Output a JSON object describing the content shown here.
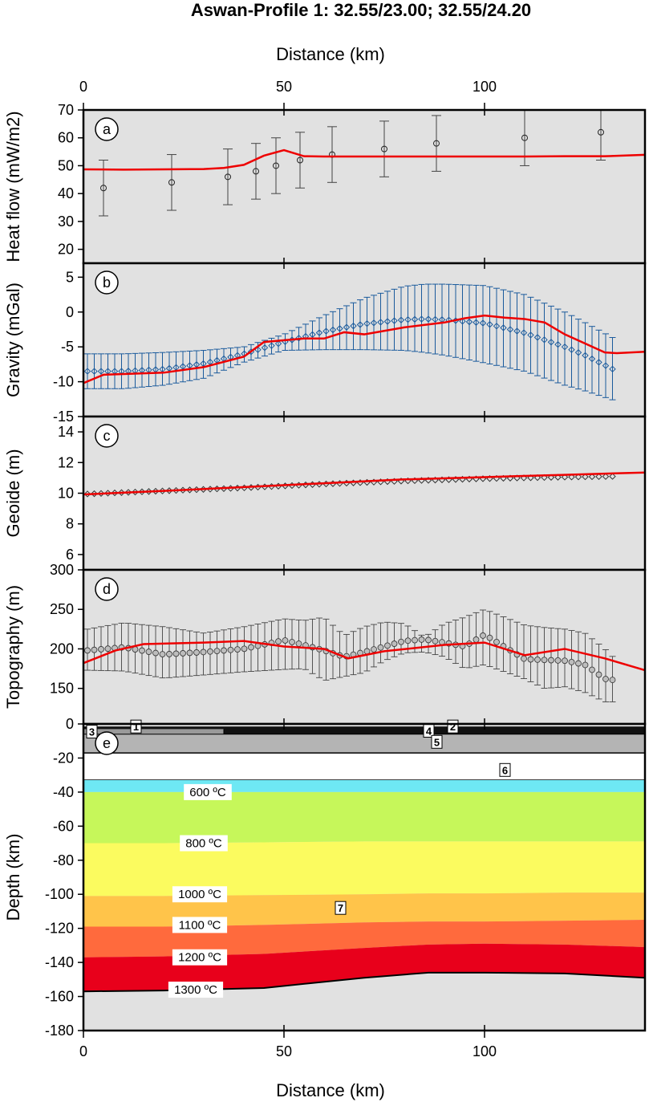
{
  "figure": {
    "title": "Aswan-Profile 1: 32.55/23.00; 32.55/24.20",
    "x_axis_label": "Distance (km)",
    "x_ticks": [
      0,
      50,
      100
    ]
  },
  "chart_data": [
    {
      "panel": "a",
      "type": "scatter",
      "ylabel": "Heat flow (mW/m2)",
      "xlim": [
        0,
        140
      ],
      "ylim": [
        15,
        70
      ],
      "yticks": [
        20,
        30,
        40,
        50,
        60,
        70
      ],
      "observed": {
        "x": [
          5,
          22,
          36,
          43,
          48,
          54,
          62,
          75,
          88,
          110,
          129
        ],
        "y": [
          42,
          44,
          46,
          48,
          50,
          52,
          54,
          56,
          58,
          60,
          62
        ],
        "err": [
          10,
          10,
          10,
          10,
          10,
          10,
          10,
          10,
          10,
          10,
          10
        ]
      },
      "model": {
        "x": [
          0,
          10,
          20,
          30,
          35,
          40,
          45,
          50,
          55,
          60,
          70,
          80,
          90,
          100,
          110,
          120,
          130,
          140
        ],
        "y": [
          48.7,
          48.6,
          48.7,
          48.8,
          49.2,
          50.3,
          53.6,
          55.6,
          53.4,
          53.3,
          53.3,
          53.3,
          53.3,
          53.3,
          53.3,
          53.4,
          53.4,
          53.9
        ]
      }
    },
    {
      "panel": "b",
      "type": "scatter",
      "ylabel": "Gravity (mGal)",
      "xlim": [
        0,
        140
      ],
      "ylim": [
        -15,
        7
      ],
      "yticks": [
        -15,
        -10,
        -5,
        0,
        5
      ],
      "observed": {
        "x": [
          1,
          10,
          20,
          30,
          40,
          50,
          60,
          70,
          80,
          85,
          90,
          100,
          110,
          120,
          125,
          133
        ],
        "y": [
          -8.5,
          -8.5,
          -8.2,
          -7.4,
          -6.0,
          -4.3,
          -2.8,
          -1.7,
          -1.1,
          -1.0,
          -1.1,
          -1.6,
          -3.0,
          -5.0,
          -6.2,
          -8.5
        ],
        "err_upper": [
          -6.0,
          -6.0,
          -5.8,
          -5.5,
          -5.0,
          -3.2,
          -0.5,
          2.0,
          3.7,
          4.0,
          4.0,
          3.8,
          2.5,
          0.0,
          -1.5,
          -4.0
        ],
        "err_lower": [
          -11.0,
          -11.0,
          -10.5,
          -9.5,
          -7.2,
          -5.5,
          -5.4,
          -5.4,
          -5.5,
          -5.8,
          -6.2,
          -7.3,
          -8.5,
          -10.5,
          -11.3,
          -12.8
        ]
      },
      "model": {
        "x": [
          0,
          5,
          20,
          30,
          40,
          45,
          55,
          60,
          65,
          70,
          80,
          90,
          95,
          100,
          105,
          110,
          115,
          120,
          130,
          133,
          140
        ],
        "y": [
          -10.2,
          -9.0,
          -8.7,
          -7.9,
          -6.4,
          -4.3,
          -3.8,
          -3.8,
          -2.9,
          -3.2,
          -2.2,
          -1.5,
          -0.9,
          -0.5,
          -0.8,
          -1.0,
          -1.5,
          -3.2,
          -5.8,
          -5.9,
          -5.7
        ]
      }
    },
    {
      "panel": "c",
      "type": "scatter",
      "ylabel": "Geoide (m)",
      "xlim": [
        0,
        140
      ],
      "ylim": [
        5,
        15
      ],
      "yticks": [
        6,
        8,
        10,
        12,
        14
      ],
      "observed": {
        "x": [
          1,
          20,
          40,
          60,
          80,
          100,
          120,
          133
        ],
        "y": [
          9.95,
          10.15,
          10.35,
          10.6,
          10.8,
          10.95,
          11.05,
          11.1
        ]
      },
      "model": {
        "x": [
          0,
          20,
          40,
          60,
          80,
          100,
          120,
          140
        ],
        "y": [
          9.92,
          10.15,
          10.4,
          10.65,
          10.9,
          11.05,
          11.2,
          11.35
        ]
      }
    },
    {
      "panel": "d",
      "type": "scatter",
      "ylabel": "Topography (m)",
      "xlim": [
        0,
        140
      ],
      "ylim": [
        105,
        300
      ],
      "yticks": [
        150,
        200,
        250,
        300
      ],
      "observed": {
        "x": [
          1,
          10,
          20,
          30,
          40,
          50,
          55,
          60,
          65,
          70,
          75,
          80,
          85,
          90,
          95,
          100,
          110,
          115,
          120,
          125,
          130,
          133
        ],
        "y": [
          198,
          202,
          193,
          196,
          200,
          211,
          205,
          198,
          190,
          196,
          203,
          210,
          212,
          208,
          203,
          218,
          187,
          186,
          185,
          180,
          162,
          160
        ],
        "err_upper": [
          225,
          233,
          228,
          220,
          228,
          238,
          236,
          240,
          217,
          228,
          234,
          232,
          215,
          232,
          240,
          250,
          230,
          227,
          225,
          220,
          200,
          185
        ],
        "err_lower": [
          173,
          172,
          163,
          167,
          171,
          174,
          175,
          160,
          165,
          170,
          185,
          195,
          196,
          190,
          175,
          180,
          162,
          150,
          152,
          145,
          133,
          133
        ]
      },
      "model": {
        "x": [
          0,
          8,
          15,
          30,
          40,
          50,
          60,
          66,
          75,
          90,
          100,
          110,
          120,
          130,
          140
        ],
        "y": [
          182,
          198,
          206,
          208,
          210,
          203,
          200,
          188,
          197,
          205,
          208,
          192,
          200,
          188,
          173
        ]
      }
    },
    {
      "panel": "e",
      "type": "area",
      "ylabel": "Depth (km)",
      "xlim": [
        0,
        140
      ],
      "ylim": [
        -180,
        0
      ],
      "yticks": [
        0,
        -20,
        -40,
        -60,
        -80,
        -100,
        -120,
        -140,
        -160,
        -180
      ],
      "isotherms": [
        {
          "label": "600 ºC",
          "depth": -40,
          "label_x": 31
        },
        {
          "label": "800 ºC",
          "depth": -70,
          "label_x": 30
        },
        {
          "label": "1000 ºC",
          "depth": -100,
          "label_x": 29
        },
        {
          "label": "1100 ºC",
          "depth": -118,
          "label_x": 29
        },
        {
          "label": "1200 ºC",
          "depth": -137,
          "label_x": 29
        },
        {
          "label": "1300 ºC",
          "depth": -156,
          "label_x": 28
        }
      ],
      "unit_labels": [
        "1",
        "2",
        "3",
        "4",
        "5",
        "6",
        "7"
      ]
    }
  ]
}
